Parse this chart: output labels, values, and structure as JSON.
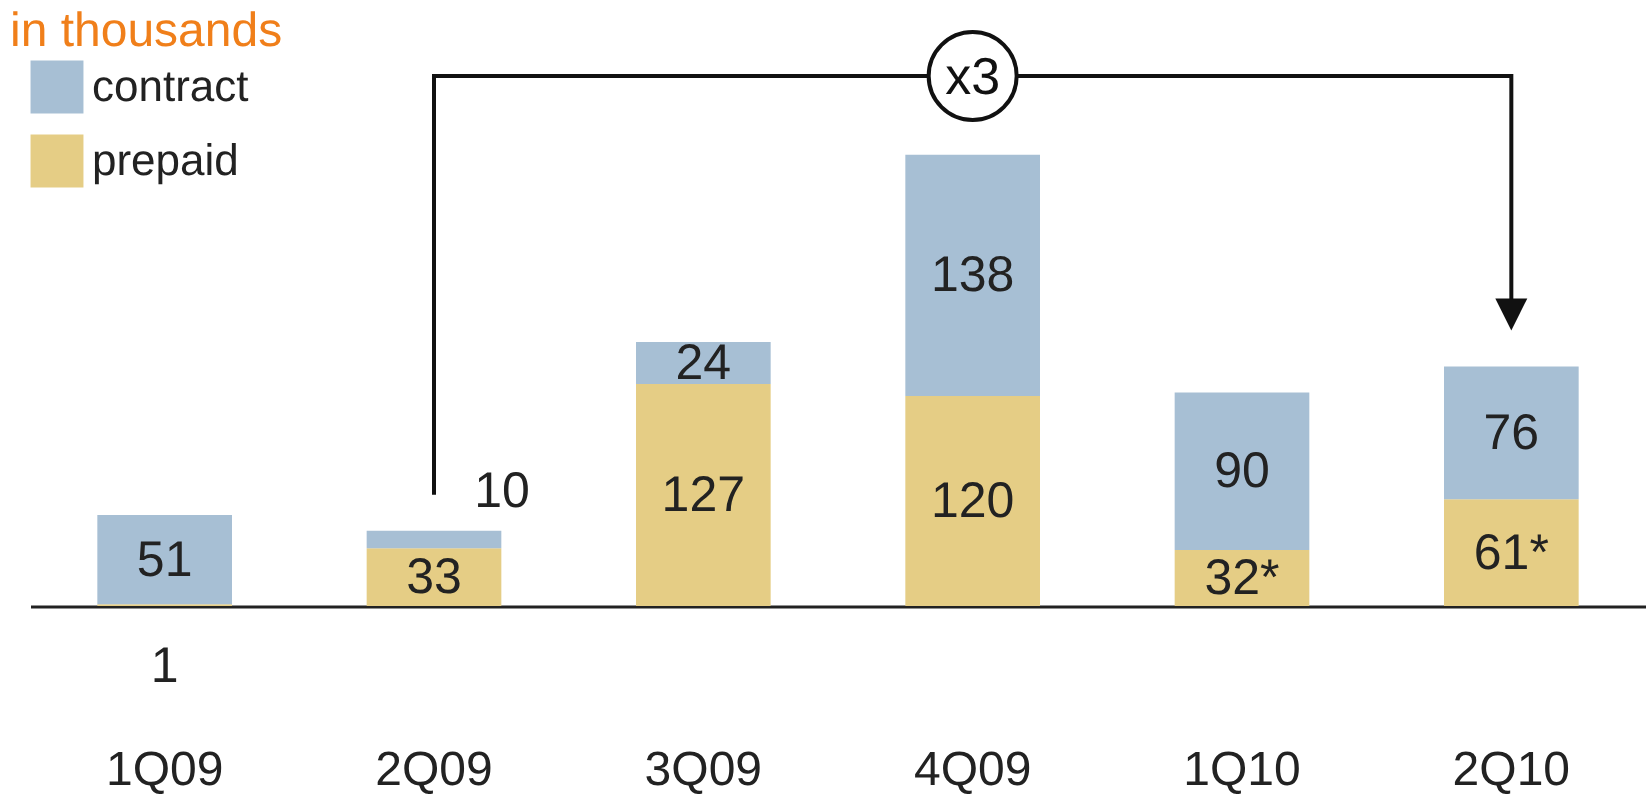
{
  "chart_data": {
    "type": "bar",
    "title": "in thousands",
    "stacked": true,
    "legend": "top left",
    "categories": [
      "1Q09",
      "2Q09",
      "3Q09",
      "4Q09",
      "1Q10",
      "2Q10"
    ],
    "series": [
      {
        "name": "prepaid",
        "color": "#e5cd85",
        "values": [
          1,
          33,
          127,
          120,
          32,
          61
        ],
        "value_labels": [
          "1",
          "33",
          "127",
          "120",
          "32*",
          "61*"
        ]
      },
      {
        "name": "contract",
        "color": "#a7bfd4",
        "values": [
          51,
          10,
          24,
          138,
          90,
          76
        ],
        "value_labels": [
          "51",
          "10",
          "24",
          "138",
          "90",
          "76"
        ]
      }
    ],
    "annotations": [
      "x3"
    ]
  }
}
